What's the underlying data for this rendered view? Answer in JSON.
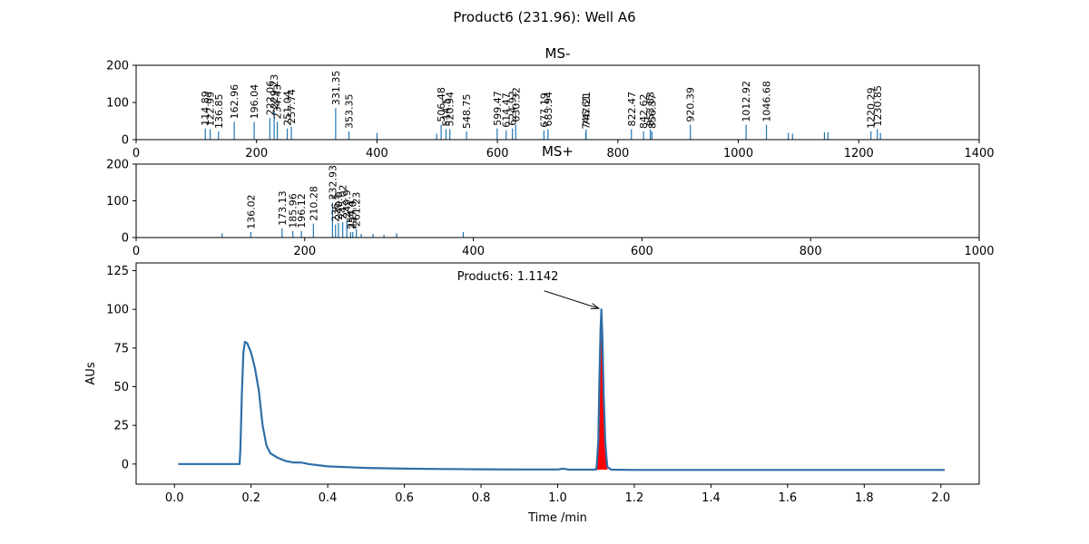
{
  "figure": {
    "title": "Product6 (231.96): Well A6",
    "colors": {
      "bar": "#1f77b4",
      "line": "#2e6fa8",
      "highlight": "#ff0000",
      "text": "#000000"
    }
  },
  "chart_data": [
    {
      "id": "ms-neg",
      "type": "bar",
      "title": "MS-",
      "xlim": [
        0,
        1400
      ],
      "ylim": [
        0,
        200
      ],
      "xticks": [
        0,
        200,
        400,
        600,
        800,
        1000,
        1200,
        1400
      ],
      "yticks": [
        0,
        100,
        200
      ],
      "peaks": [
        {
          "x": 114.89,
          "y": 30,
          "label": "114.89"
        },
        {
          "x": 122.99,
          "y": 28,
          "label": "122.99"
        },
        {
          "x": 136.85,
          "y": 22,
          "label": "136.85"
        },
        {
          "x": 162.96,
          "y": 48,
          "label": "162.96"
        },
        {
          "x": 196.04,
          "y": 48,
          "label": "196.04"
        },
        {
          "x": 222.06,
          "y": 58,
          "label": "222.06"
        },
        {
          "x": 229.23,
          "y": 75,
          "label": "229.23"
        },
        {
          "x": 234.43,
          "y": 48,
          "label": "234.43"
        },
        {
          "x": 251.04,
          "y": 30,
          "label": "251.04"
        },
        {
          "x": 257.74,
          "y": 35,
          "label": "257.74"
        },
        {
          "x": 331.35,
          "y": 85,
          "label": "331.35"
        },
        {
          "x": 353.35,
          "y": 22,
          "label": "353.35"
        },
        {
          "x": 400,
          "y": 18,
          "label": ""
        },
        {
          "x": 499,
          "y": 16,
          "label": ""
        },
        {
          "x": 506.48,
          "y": 40,
          "label": "506.48"
        },
        {
          "x": 514.5,
          "y": 28,
          "label": "514.5"
        },
        {
          "x": 520.94,
          "y": 28,
          "label": "520.94"
        },
        {
          "x": 548.75,
          "y": 22,
          "label": "548.75"
        },
        {
          "x": 599.47,
          "y": 30,
          "label": "599.47"
        },
        {
          "x": 614.47,
          "y": 25,
          "label": "614.47"
        },
        {
          "x": 624.92,
          "y": 30,
          "label": "624.92"
        },
        {
          "x": 630.32,
          "y": 40,
          "label": "630.32"
        },
        {
          "x": 677.19,
          "y": 25,
          "label": "677.19"
        },
        {
          "x": 683.94,
          "y": 28,
          "label": "683.94"
        },
        {
          "x": 746.61,
          "y": 20,
          "label": "746.61"
        },
        {
          "x": 747.21,
          "y": 28,
          "label": "747.21"
        },
        {
          "x": 822.47,
          "y": 28,
          "label": "822.47"
        },
        {
          "x": 842.62,
          "y": 22,
          "label": "842.62"
        },
        {
          "x": 853.83,
          "y": 28,
          "label": "853.83"
        },
        {
          "x": 856.57,
          "y": 22,
          "label": "856.57"
        },
        {
          "x": 920.39,
          "y": 40,
          "label": "920.39"
        },
        {
          "x": 1012.92,
          "y": 40,
          "label": "1012.92"
        },
        {
          "x": 1046.68,
          "y": 40,
          "label": "1046.68"
        },
        {
          "x": 1083,
          "y": 18,
          "label": ""
        },
        {
          "x": 1090,
          "y": 16,
          "label": ""
        },
        {
          "x": 1143,
          "y": 20,
          "label": ""
        },
        {
          "x": 1149,
          "y": 20,
          "label": ""
        },
        {
          "x": 1220.29,
          "y": 22,
          "label": "1220.29"
        },
        {
          "x": 1230.85,
          "y": 28,
          "label": "1230.85"
        },
        {
          "x": 1236,
          "y": 18,
          "label": ""
        }
      ]
    },
    {
      "id": "ms-pos",
      "type": "bar",
      "title": "MS+",
      "xlim": [
        0,
        1000
      ],
      "ylim": [
        0,
        200
      ],
      "xticks": [
        0,
        200,
        400,
        600,
        800,
        1000
      ],
      "yticks": [
        0,
        100,
        200
      ],
      "peaks": [
        {
          "x": 102,
          "y": 12,
          "label": ""
        },
        {
          "x": 136.02,
          "y": 15,
          "label": "136.02"
        },
        {
          "x": 173.13,
          "y": 25,
          "label": "173.13"
        },
        {
          "x": 185.96,
          "y": 18,
          "label": "185.96"
        },
        {
          "x": 196.12,
          "y": 18,
          "label": "196.12"
        },
        {
          "x": 210.28,
          "y": 38,
          "label": "210.28"
        },
        {
          "x": 232.93,
          "y": 95,
          "label": "232.93"
        },
        {
          "x": 236.5,
          "y": 35,
          "label": "236.5"
        },
        {
          "x": 240.0,
          "y": 40,
          "label": "240.0"
        },
        {
          "x": 245.02,
          "y": 42,
          "label": "245.02"
        },
        {
          "x": 249.9,
          "y": 45,
          "label": "249.9"
        },
        {
          "x": 254.4,
          "y": 15,
          "label": "254.4"
        },
        {
          "x": 257.0,
          "y": 15,
          "label": "257.0"
        },
        {
          "x": 261.23,
          "y": 22,
          "label": "261.23"
        },
        {
          "x": 267,
          "y": 10,
          "label": ""
        },
        {
          "x": 281,
          "y": 10,
          "label": ""
        },
        {
          "x": 294,
          "y": 8,
          "label": ""
        },
        {
          "x": 309,
          "y": 12,
          "label": ""
        },
        {
          "x": 388,
          "y": 15,
          "label": ""
        }
      ]
    },
    {
      "id": "uv",
      "type": "line",
      "xlabel": "Time /min",
      "ylabel": "AUs",
      "xlim": [
        -0.1,
        2.1
      ],
      "ylim": [
        -13,
        130
      ],
      "xticks": [
        0.0,
        0.2,
        0.4,
        0.6,
        0.8,
        1.0,
        1.2,
        1.4,
        1.6,
        1.8,
        2.0
      ],
      "yticks": [
        0,
        25,
        50,
        75,
        100,
        125
      ],
      "series": [
        {
          "x": [
            0.01,
            0.17,
            0.172,
            0.176,
            0.18,
            0.184,
            0.19,
            0.2,
            0.21,
            0.22,
            0.23,
            0.24,
            0.25,
            0.27,
            0.29,
            0.31,
            0.33,
            0.35,
            0.4,
            0.5,
            0.6,
            0.7,
            0.8,
            0.9,
            1.0,
            1.015,
            1.02,
            1.03,
            1.1,
            1.102,
            1.106,
            1.109,
            1.112,
            1.1142,
            1.117,
            1.12,
            1.124,
            1.128,
            1.13,
            1.14,
            1.2,
            1.4,
            1.6,
            1.8,
            2.0,
            2.01
          ],
          "y": [
            0,
            0,
            10,
            45,
            72,
            79,
            78,
            72,
            62,
            48,
            25,
            12,
            7,
            4,
            2,
            1,
            1,
            0,
            -1.5,
            -2.5,
            -3,
            -3.2,
            -3.4,
            -3.5,
            -3.5,
            -3.0,
            -3.2,
            -3.6,
            -3.6,
            -1,
            15,
            55,
            88,
            100,
            80,
            45,
            15,
            2,
            -2,
            -3.6,
            -3.8,
            -3.8,
            -3.8,
            -3.8,
            -3.8,
            -3.8
          ]
        }
      ],
      "highlight": {
        "from": 1.1,
        "to": 1.13
      },
      "annotation": {
        "text": "Product6: 1.1142",
        "x": 1.1142,
        "y": 100,
        "text_x": 0.87,
        "text_y": 119
      }
    }
  ]
}
